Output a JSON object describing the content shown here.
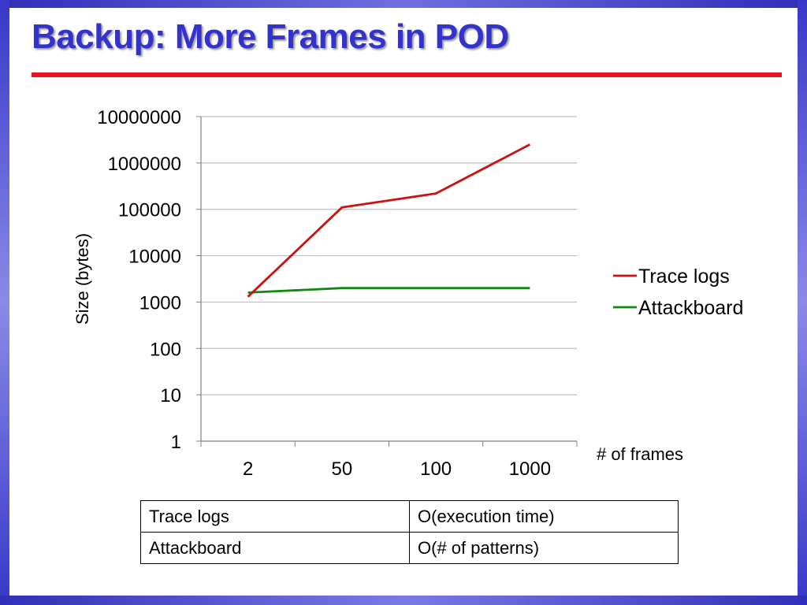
{
  "slide": {
    "title": "Backup: More Frames in POD"
  },
  "colors": {
    "title": "#3333cc",
    "title_rule": "#e8141d",
    "frame": "#3838c8",
    "trace_logs": "#cc1111",
    "attackboard": "#118811",
    "grid": "#bfbfbf"
  },
  "chart_data": {
    "type": "line",
    "y_scale": "log",
    "x": [
      "2",
      "50",
      "100",
      "1000"
    ],
    "y_ticks": [
      "1",
      "10",
      "100",
      "1000",
      "10000",
      "100000",
      "1000000",
      "10000000"
    ],
    "ylim": [
      1,
      10000000
    ],
    "xlabel": "# of frames",
    "ylabel": "Size (bytes)",
    "grid": true,
    "legend_position": "right",
    "series": [
      {
        "name": "Trace logs",
        "color": "#cc1111",
        "values": [
          1300,
          110000,
          220000,
          2500000
        ]
      },
      {
        "name": "Attackboard",
        "color": "#118811",
        "values": [
          1600,
          2000,
          2000,
          2000
        ]
      }
    ]
  },
  "table": {
    "rows": [
      [
        "Trace logs",
        "O(execution time)"
      ],
      [
        "Attackboard",
        "O(# of patterns)"
      ]
    ]
  }
}
